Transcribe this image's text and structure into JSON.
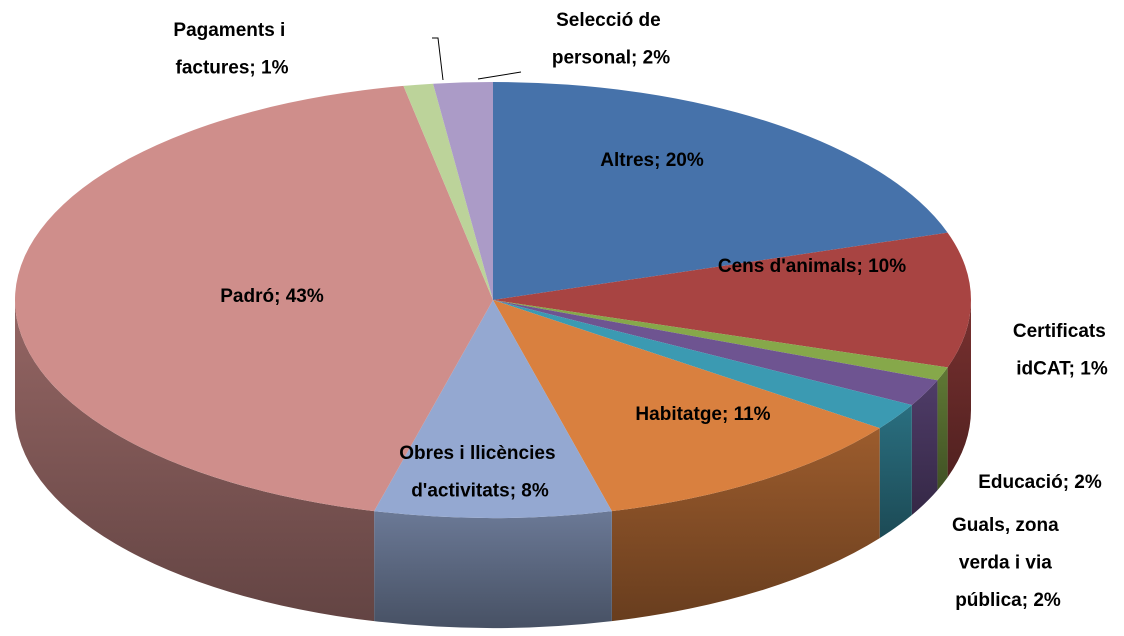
{
  "chart_data": {
    "type": "pie",
    "categories": [
      "Altres",
      "Cens d'animals",
      "Certificats idCAT",
      "Educació",
      "Guals, zona verda i via pública",
      "Habitatge",
      "Obres i llicències d'activitats",
      "Padró",
      "Pagaments i factures",
      "Selecció de personal"
    ],
    "values": [
      20,
      10,
      1,
      2,
      2,
      11,
      8,
      43,
      1,
      2
    ],
    "value_labels": [
      "Altres; 20%",
      "Cens d'animals; 10%",
      "Certificats idCAT; 1%",
      "Educació; 2%",
      "Guals, zona verda i via pública; 2%",
      "Habitatge; 11%",
      "Obres i llicències d'activitats; 8%",
      "Padró; 43%",
      "Pagaments i factures; 1%",
      "Selecció de personal; 2%"
    ],
    "colors": [
      "#4672aa",
      "#a84442",
      "#86a84a",
      "#6e5491",
      "#3b9ab2",
      "#d9803f",
      "#94a8d1",
      "#cf8e8b",
      "#bcd39a",
      "#ab9bc7"
    ]
  }
}
